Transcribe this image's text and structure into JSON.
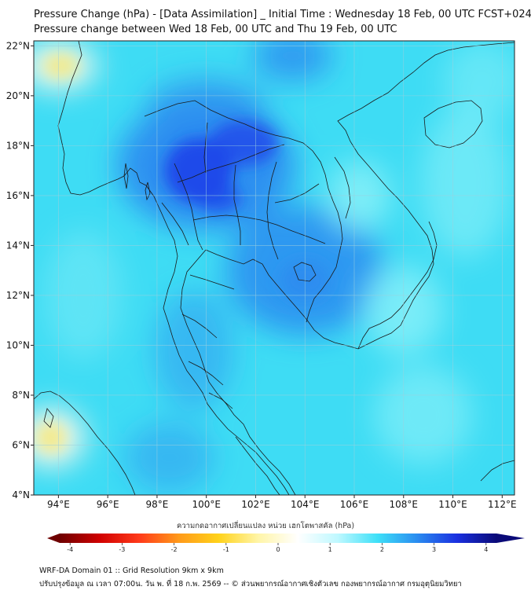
{
  "title_line1": "Pressure Change (hPa) - [Data Assimilation] _ Initial Time : Wednesday 18 Feb, 00 UTC FCST+024",
  "title_line2": "Pressure change between Wed 18 Feb, 00 UTC and Thu 19 Feb, 00 UTC",
  "map": {
    "lon_range": [
      93,
      112.5
    ],
    "lat_range": [
      4,
      22.2
    ],
    "lon_ticks": [
      {
        "value": 94,
        "label": "94°E"
      },
      {
        "value": 96,
        "label": "96°E"
      },
      {
        "value": 98,
        "label": "98°E"
      },
      {
        "value": 100,
        "label": "100°E"
      },
      {
        "value": 102,
        "label": "102°E"
      },
      {
        "value": 104,
        "label": "104°E"
      },
      {
        "value": 106,
        "label": "106°E"
      },
      {
        "value": 108,
        "label": "108°E"
      },
      {
        "value": 110,
        "label": "110°E"
      },
      {
        "value": 112,
        "label": "112°E"
      }
    ],
    "lat_ticks": [
      {
        "value": 4,
        "label": "4°N"
      },
      {
        "value": 6,
        "label": "6°N"
      },
      {
        "value": 8,
        "label": "8°N"
      },
      {
        "value": 10,
        "label": "10°N"
      },
      {
        "value": 12,
        "label": "12°N"
      },
      {
        "value": 14,
        "label": "14°N"
      },
      {
        "value": 16,
        "label": "16°N"
      },
      {
        "value": 18,
        "label": "18°N"
      },
      {
        "value": 20,
        "label": "20°N"
      },
      {
        "value": 22,
        "label": "22°N"
      }
    ],
    "gridlines": true,
    "field_colors": {
      "background": "#3edcf4",
      "strong_rise": "#1f47ea",
      "moderate_rise": "#2c8cf0",
      "weak_rise": "#7feef8",
      "near_zero": "#f4f8ec",
      "slight_fall": "#f3ea8a"
    }
  },
  "colorbar": {
    "label": "ความกดอากาศเปลี่ยนแปลง หน่วย เฮกโตพาสคัล (hPa)",
    "min": -4.2,
    "max": 4.2,
    "ticks": [
      {
        "value": -4,
        "label": "-4"
      },
      {
        "value": -3,
        "label": "-3"
      },
      {
        "value": -2,
        "label": "-2"
      },
      {
        "value": -1,
        "label": "-1"
      },
      {
        "value": 0,
        "label": "0"
      },
      {
        "value": 1,
        "label": "1"
      },
      {
        "value": 2,
        "label": "2"
      },
      {
        "value": 3,
        "label": "3"
      },
      {
        "value": 4,
        "label": "4"
      }
    ],
    "stops": [
      "#6e0000",
      "#d00000",
      "#ff3a1a",
      "#ff9a1a",
      "#ffd21a",
      "#fff5a8",
      "#ffffff",
      "#bff8ff",
      "#3ee0f8",
      "#2a8cf0",
      "#1a30e0",
      "#0a0a78"
    ]
  },
  "footer_line1": "WRF-DA Domain 01 :: Grid Resolution 9km x 9km",
  "footer_line2": "ปรับปรุงข้อมูล ณ เวลา 07:00น. วัน พ. ที่ 18 ก.พ. 2569 -- © ส่วนพยากรณ์อากาศเชิงตัวเลข กองพยากรณ์อากาศ กรมอุตุนิยมวิทยา"
}
